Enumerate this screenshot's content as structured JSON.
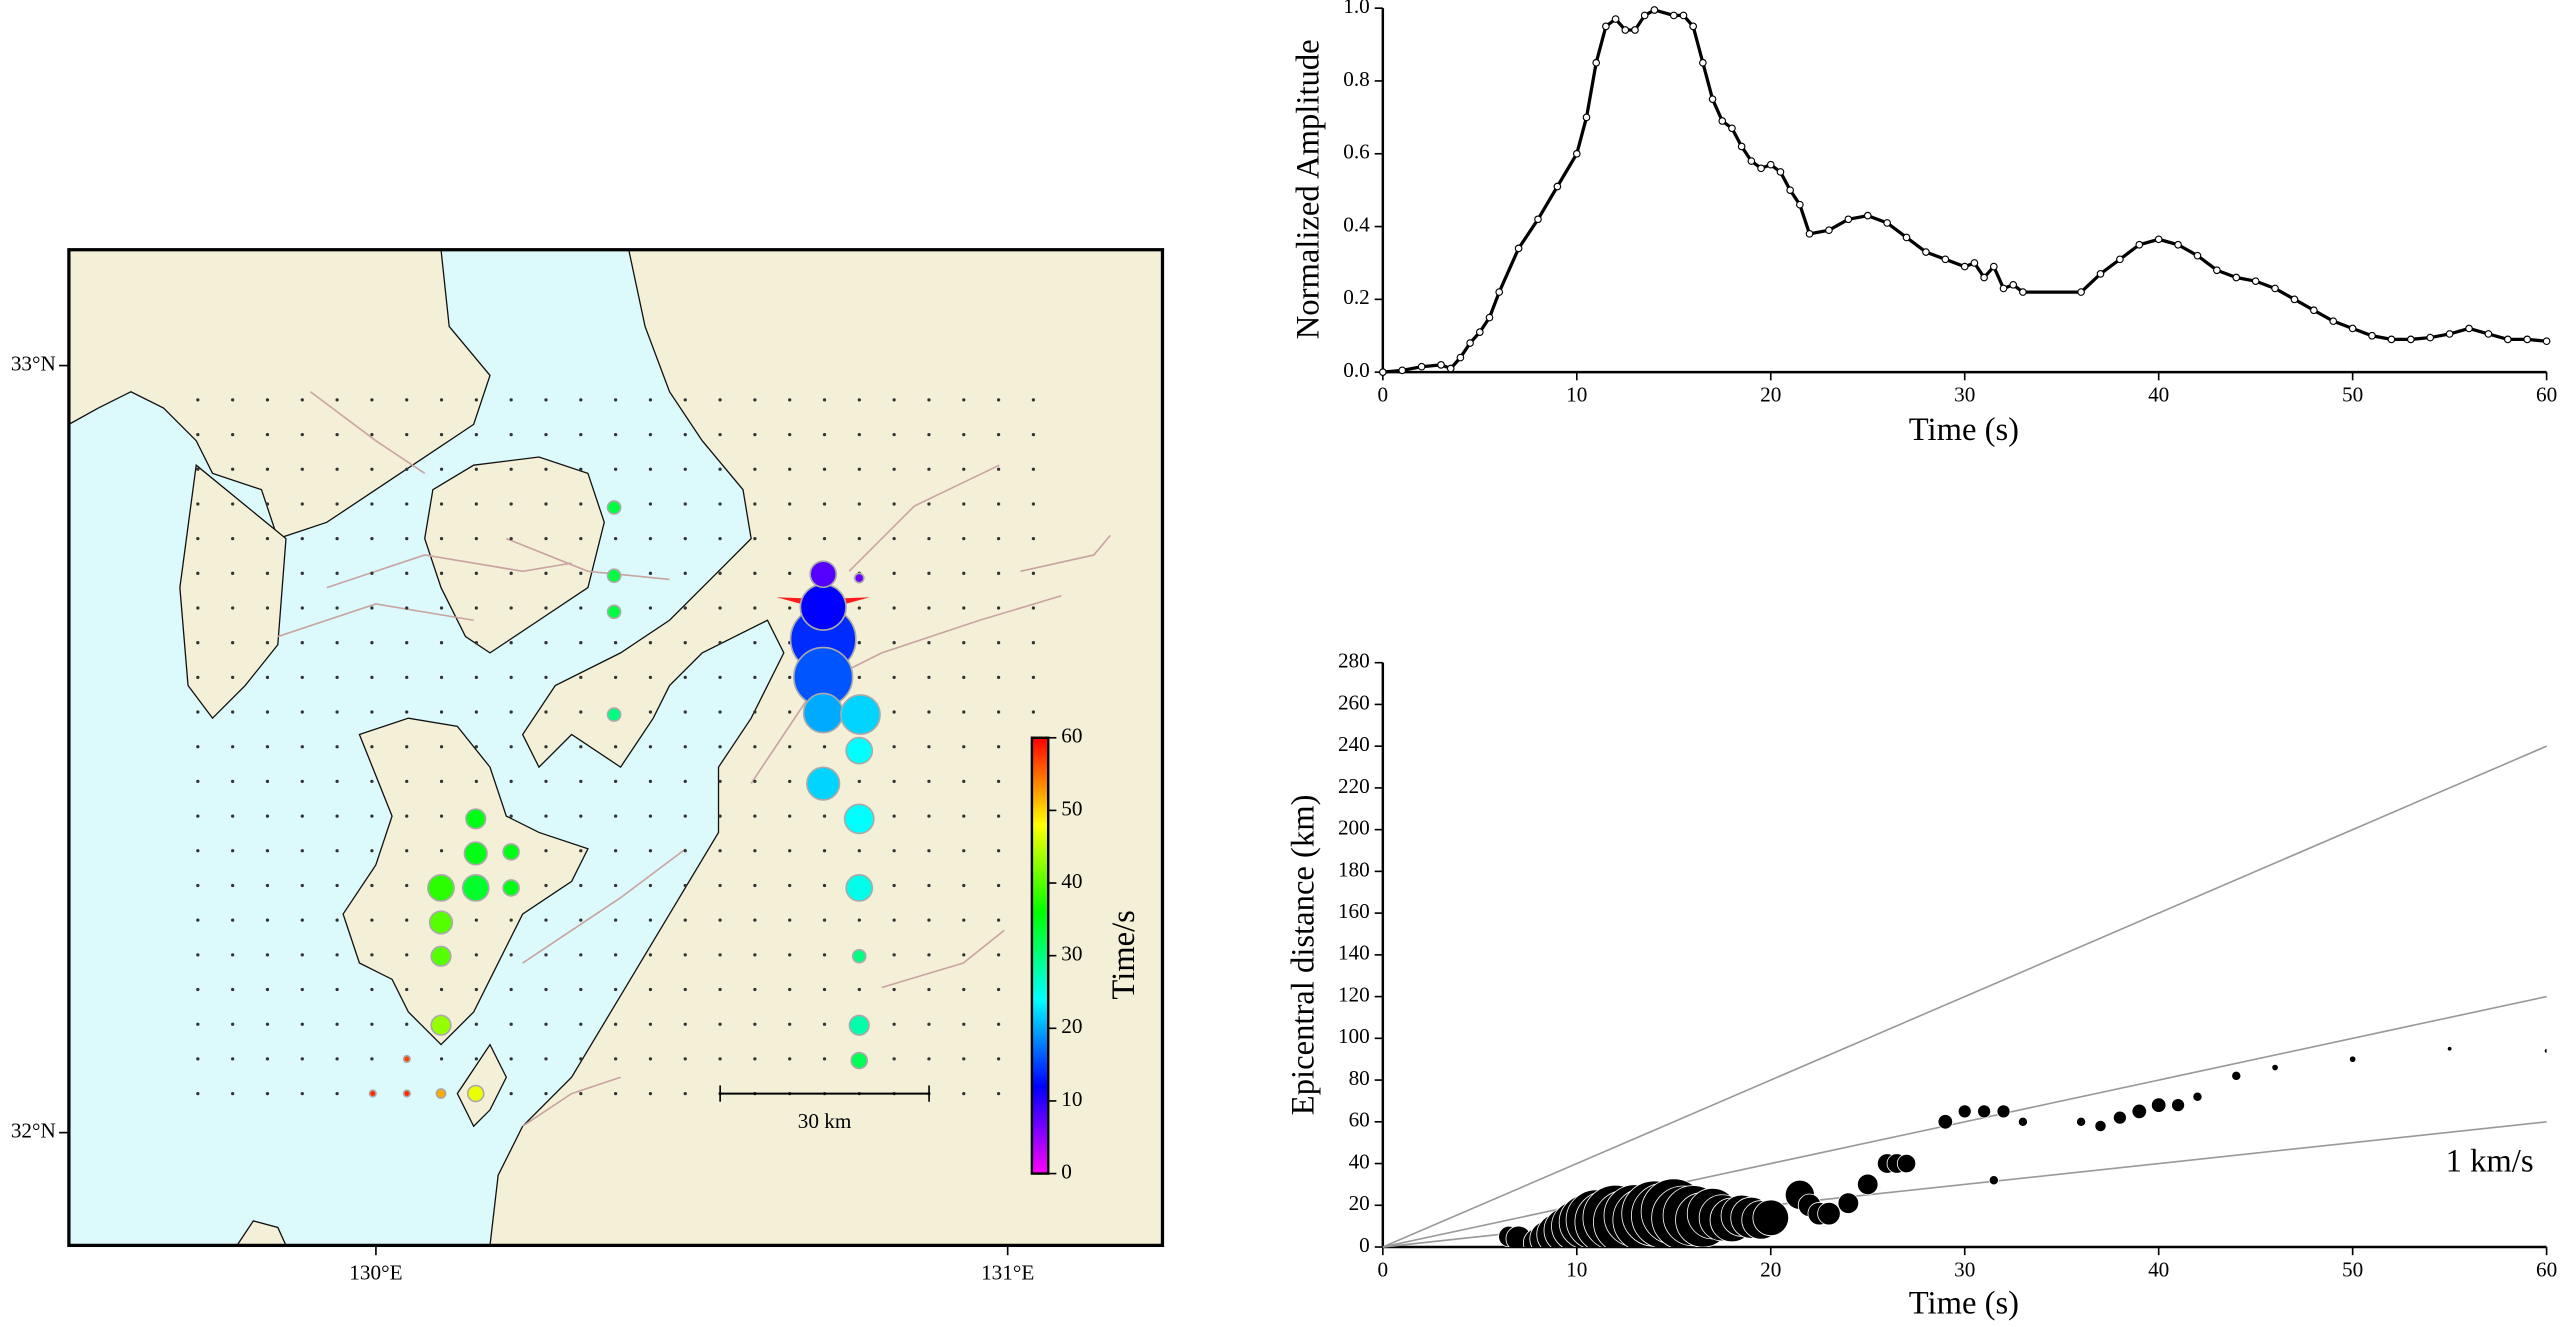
{
  "chart_data": [
    {
      "type": "map",
      "xlim": [
        129.514,
        131.245
      ],
      "ylim": [
        31.853,
        33.151
      ],
      "xticks": [
        {
          "value": 130,
          "label": "130°E"
        },
        {
          "value": 131,
          "label": "131°E"
        }
      ],
      "yticks": [
        {
          "value": 32,
          "label": "32°N"
        },
        {
          "value": 33,
          "label": "33°N"
        }
      ],
      "lon": [
        130.377,
        130.377,
        130.377,
        130.377,
        130.708,
        130.765,
        130.708,
        130.708,
        130.708,
        130.708,
        130.767,
        130.765,
        130.708,
        130.765,
        130.765,
        130.765,
        130.765,
        130.765,
        130.158,
        130.158,
        130.214,
        130.103,
        130.158,
        130.214,
        130.103,
        130.103,
        130.103,
        130.158,
        130.103,
        130.049,
        129.995,
        130.049
      ],
      "lat": [
        32.815,
        32.726,
        32.679,
        32.545,
        32.728,
        32.723,
        32.685,
        32.643,
        32.594,
        32.547,
        32.545,
        32.498,
        32.455,
        32.409,
        32.319,
        32.23,
        32.14,
        32.094,
        32.409,
        32.364,
        32.366,
        32.319,
        32.319,
        32.319,
        32.274,
        32.23,
        32.14,
        32.051,
        32.051,
        32.051,
        32.051,
        32.096
      ],
      "times": [
        33,
        33,
        33,
        30,
        8,
        7,
        12,
        14,
        16,
        20,
        22,
        24,
        22,
        24,
        25,
        30,
        28,
        32,
        35,
        35,
        35,
        38,
        34,
        35,
        40,
        40,
        43,
        47,
        52,
        58,
        58,
        57
      ],
      "sizes": [
        0.04,
        0.04,
        0.04,
        0.04,
        0.16,
        0.02,
        0.49,
        1.0,
        0.81,
        0.36,
        0.36,
        0.16,
        0.25,
        0.2,
        0.16,
        0.04,
        0.09,
        0.06,
        0.09,
        0.12,
        0.06,
        0.16,
        0.16,
        0.06,
        0.12,
        0.09,
        0.09,
        0.06,
        0.02,
        0.01,
        0.01,
        0.01
      ],
      "epicenter": [
        130.708,
        32.689
      ],
      "epicenter_color": "#ff1a1a",
      "colormap": [
        "#ff00ff",
        "#0000ff",
        "#00ffff",
        "#00ff00",
        "#ffff00",
        "#ff0000"
      ],
      "clim": [
        0,
        60
      ],
      "cticks": [
        0,
        10,
        20,
        30,
        40,
        50,
        60
      ],
      "colorbar_label": "Time/s",
      "scale_label": "30 km"
    },
    {
      "type": "line",
      "xlabel": "Time (s)",
      "ylabel": "Normalized Amplitude",
      "xlim": [
        0,
        60
      ],
      "ylim": [
        0,
        1
      ],
      "xticks": [
        0,
        10,
        20,
        30,
        40,
        50,
        60
      ],
      "yticks": [
        {
          "value": 0,
          "label": "0.0"
        },
        {
          "value": 0.2,
          "label": "0.2"
        },
        {
          "value": 0.4,
          "label": "0.4"
        },
        {
          "value": 0.6,
          "label": "0.6"
        },
        {
          "value": 0.8,
          "label": "0.8"
        },
        {
          "value": 1,
          "label": "1.0"
        }
      ],
      "color": "#000000",
      "x": [
        0,
        1,
        2,
        3,
        3.5,
        4,
        4.5,
        5,
        5.5,
        6,
        7,
        8,
        9,
        10,
        10.5,
        11,
        11.5,
        12,
        12.5,
        13,
        13.5,
        14,
        15,
        15.5,
        16,
        16.5,
        17,
        17.5,
        18,
        18.5,
        19,
        19.5,
        20,
        20.5,
        21,
        21.5,
        22,
        23,
        24,
        25,
        26,
        27,
        28,
        29,
        30,
        30.5,
        31,
        31.5,
        32,
        32.5,
        33,
        36,
        37,
        38,
        39,
        40,
        41,
        42,
        43,
        44,
        45,
        46,
        47,
        48,
        49,
        50,
        51,
        52,
        53,
        54,
        55,
        56,
        57,
        58,
        59,
        60
      ],
      "values": [
        0,
        0.005,
        0.015,
        0.02,
        0.01,
        0.04,
        0.08,
        0.11,
        0.15,
        0.22,
        0.34,
        0.42,
        0.51,
        0.6,
        0.7,
        0.85,
        0.95,
        0.97,
        0.94,
        0.94,
        0.98,
        0.995,
        0.98,
        0.98,
        0.95,
        0.85,
        0.75,
        0.69,
        0.67,
        0.62,
        0.58,
        0.56,
        0.57,
        0.55,
        0.5,
        0.46,
        0.38,
        0.39,
        0.42,
        0.43,
        0.41,
        0.37,
        0.33,
        0.31,
        0.29,
        0.3,
        0.26,
        0.29,
        0.23,
        0.24,
        0.22,
        0.22,
        0.27,
        0.31,
        0.35,
        0.365,
        0.35,
        0.32,
        0.28,
        0.26,
        0.25,
        0.23,
        0.2,
        0.17,
        0.14,
        0.12,
        0.1,
        0.09,
        0.09,
        0.095,
        0.105,
        0.12,
        0.105,
        0.09,
        0.09,
        0.085
      ]
    },
    {
      "type": "scatter",
      "xlabel": "Time (s)",
      "ylabel": "Epicentral distance (km)",
      "xlim": [
        0,
        60
      ],
      "ylim": [
        0,
        280
      ],
      "xticks": [
        0,
        10,
        20,
        30,
        40,
        50,
        60
      ],
      "yticks": [
        0,
        20,
        40,
        60,
        80,
        100,
        120,
        140,
        160,
        180,
        200,
        220,
        240,
        260,
        280
      ],
      "reference_speeds": [
        4,
        2,
        1
      ],
      "annotation": "1 km/s",
      "color": "#000000",
      "x": [
        6.5,
        7,
        8,
        8.5,
        9,
        9.5,
        10,
        10.5,
        11,
        11.5,
        12,
        12.5,
        13,
        13.5,
        14,
        14.5,
        15,
        15.5,
        16,
        16.5,
        17,
        17.5,
        18,
        18.5,
        19,
        19.5,
        20,
        21.5,
        22,
        22.5,
        23,
        24,
        25,
        26,
        26.5,
        27,
        29,
        30,
        31,
        32,
        33,
        31.5,
        36,
        37,
        38,
        39,
        40,
        41,
        42,
        44,
        46,
        50,
        55,
        60
      ],
      "values": [
        5,
        4,
        2,
        4,
        6,
        8,
        10,
        12,
        13,
        12,
        14,
        12,
        15,
        13,
        16,
        15,
        17,
        14,
        15,
        13,
        16,
        14,
        13,
        15,
        14,
        13,
        14,
        25,
        20,
        16,
        16,
        21,
        30,
        40,
        40,
        40,
        60,
        65,
        65,
        65,
        60,
        32,
        60,
        58,
        62,
        65,
        68,
        68,
        72,
        82,
        86,
        90,
        95,
        94
      ],
      "sizes": [
        0.1,
        0.15,
        0.2,
        0.3,
        0.4,
        0.5,
        0.6,
        0.7,
        0.85,
        0.9,
        1,
        0.95,
        0.9,
        0.95,
        1,
        1,
        1,
        0.95,
        0.85,
        0.7,
        0.6,
        0.5,
        0.45,
        0.4,
        0.4,
        0.35,
        0.3,
        0.2,
        0.12,
        0.12,
        0.12,
        0.1,
        0.1,
        0.09,
        0.09,
        0.08,
        0.05,
        0.04,
        0.04,
        0.04,
        0.02,
        0.02,
        0.02,
        0.03,
        0.04,
        0.05,
        0.05,
        0.04,
        0.02,
        0.02,
        0.01,
        0.01,
        0.005,
        0.005
      ]
    }
  ]
}
